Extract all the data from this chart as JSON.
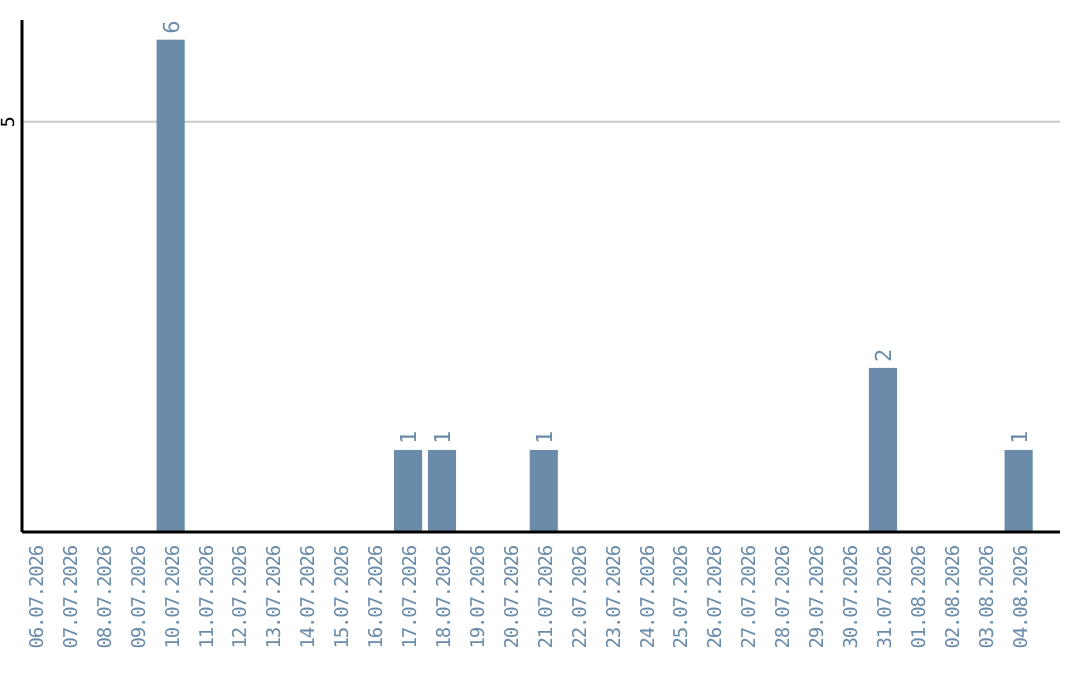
{
  "chart_data": {
    "type": "bar",
    "categories": [
      "06.07.2026",
      "07.07.2026",
      "08.07.2026",
      "09.07.2026",
      "10.07.2026",
      "11.07.2026",
      "12.07.2026",
      "13.07.2026",
      "14.07.2026",
      "15.07.2026",
      "16.07.2026",
      "17.07.2026",
      "18.07.2026",
      "19.07.2026",
      "20.07.2026",
      "21.07.2026",
      "22.07.2026",
      "23.07.2026",
      "24.07.2026",
      "25.07.2026",
      "26.07.2026",
      "27.07.2026",
      "28.07.2026",
      "29.07.2026",
      "30.07.2026",
      "31.07.2026",
      "01.08.2026",
      "02.08.2026",
      "03.08.2026",
      "04.08.2026"
    ],
    "values": [
      0,
      0,
      0,
      0,
      6,
      0,
      0,
      0,
      0,
      0,
      0,
      1,
      1,
      0,
      0,
      1,
      0,
      0,
      0,
      0,
      0,
      0,
      0,
      0,
      0,
      2,
      0,
      0,
      0,
      1
    ],
    "value_labels": [
      null,
      null,
      null,
      null,
      "6",
      null,
      null,
      null,
      null,
      null,
      null,
      "1",
      "1",
      null,
      null,
      "1",
      null,
      null,
      null,
      null,
      null,
      null,
      null,
      null,
      null,
      "2",
      null,
      null,
      null,
      "1"
    ],
    "color": "#6a8caa",
    "ylim": [
      0,
      6.24
    ],
    "yticks": [
      5
    ],
    "grid": "y"
  }
}
